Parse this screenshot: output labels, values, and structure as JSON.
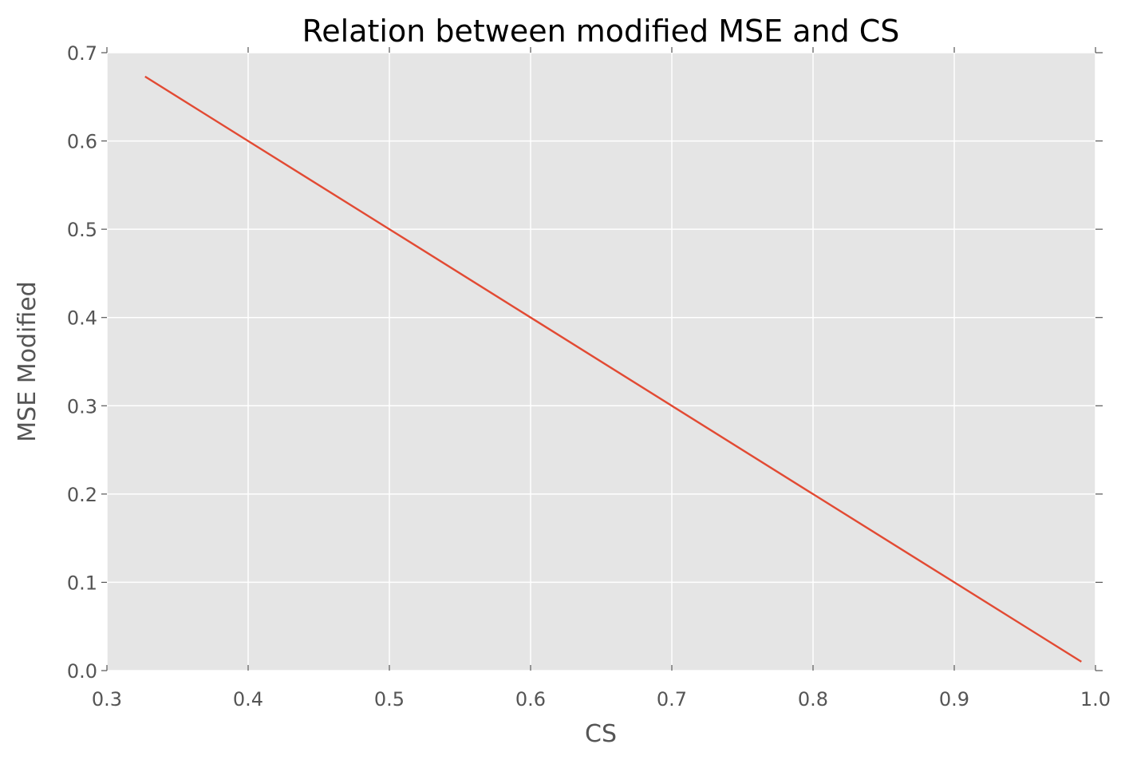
{
  "chart_data": {
    "type": "line",
    "title": "Relation between modified MSE and CS",
    "xlabel": "CS",
    "ylabel": "MSE Modified",
    "xlim": [
      0.3,
      1.0
    ],
    "ylim": [
      0.0,
      0.7
    ],
    "xticks": [
      "0.3",
      "0.4",
      "0.5",
      "0.6",
      "0.7",
      "0.8",
      "0.9",
      "1.0"
    ],
    "yticks": [
      "0.0",
      "0.1",
      "0.2",
      "0.3",
      "0.4",
      "0.5",
      "0.6",
      "0.7"
    ],
    "grid": true,
    "background": "#e5e5e5",
    "series": [
      {
        "color": "#e24a33",
        "x": [
          0.327,
          0.4,
          0.5,
          0.6,
          0.7,
          0.8,
          0.9,
          0.99
        ],
        "y": [
          0.673,
          0.6,
          0.5,
          0.4,
          0.3,
          0.2,
          0.1,
          0.01
        ]
      }
    ]
  }
}
